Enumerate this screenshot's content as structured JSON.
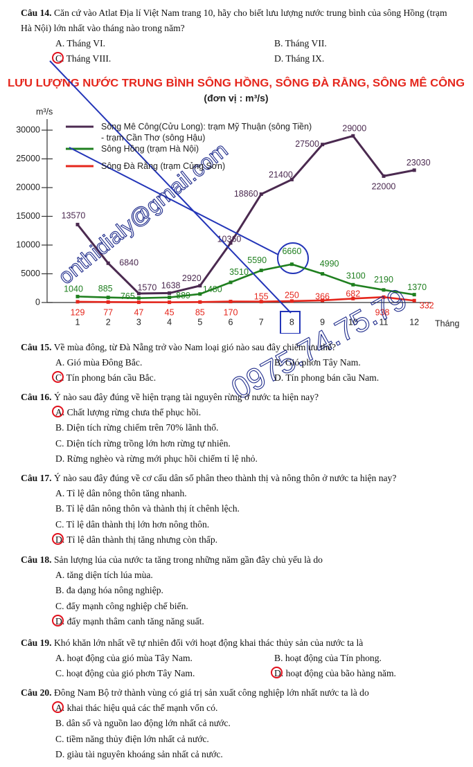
{
  "questions": [
    {
      "label": "Câu 14.",
      "text": "Căn cứ vào Atlat Địa lí Việt Nam trang 10, hãy cho biết lưu lượng nước trung bình của sông Hồng (trạm Hà Nội) lớn nhất vào tháng nào trong năm?",
      "options": [
        "A. Tháng VI.",
        "B. Tháng VII.",
        "C. Tháng VIII.",
        "D. Tháng IX."
      ]
    },
    {
      "label": "Câu 15.",
      "text": "Về mùa đông, từ Đà Nẵng trở vào Nam loại gió nào sau đây chiếm ưu thế?",
      "options": [
        "A. Gió mùa Đông Bắc.",
        "B. Gió phơn Tây Nam.",
        "C. Tín phong bán cầu Bắc.",
        "D. Tín phong bán cầu Nam."
      ]
    },
    {
      "label": "Câu 16.",
      "text": "Ý nào sau đây đúng về hiện trạng tài nguyên rừng ở nước ta hiện nay?",
      "options": [
        "A. Chất lượng rừng chưa thể phục hồi.",
        "B. Diện tích rừng chiếm trên 70% lãnh thổ.",
        "C. Diện tích rừng trồng lớn hơn rừng tự nhiên.",
        "D. Rừng nghèo và rừng mới phục hồi chiếm tỉ lệ nhỏ."
      ]
    },
    {
      "label": "Câu 17.",
      "text": "Ý nào sau đây đúng về cơ cấu dân số phân theo thành thị và nông thôn ở nước ta hiện nay?",
      "options": [
        "A. Tỉ lệ dân nông thôn tăng nhanh.",
        "B. Tỉ lệ dân nông thôn và thành thị ít chênh lệch.",
        "C. Tỉ lệ dân thành thị lớn hơn nông thôn.",
        "D. Tỉ lệ dân thành thị tăng nhưng còn thấp."
      ]
    },
    {
      "label": "Câu 18.",
      "text": "Sản lượng lúa của nước ta tăng trong những năm gần đây chủ yếu là do",
      "options": [
        "A. tăng diện tích lúa mùa.",
        "B. đa dạng hóa nông nghiệp.",
        "C. đẩy mạnh công nghiệp chế biến.",
        "D. đẩy mạnh thâm canh tăng năng suất."
      ]
    },
    {
      "label": "Câu 19.",
      "text": "Khó khăn lớn nhất về tự nhiên đối với hoạt động khai thác thủy sản của nước ta là",
      "options": [
        "A. hoạt động của gió mùa Tây Nam.",
        "B. hoạt động của Tín phong.",
        "C. hoạt động của gió phơn Tây Nam.",
        "D. hoạt động của bão hàng năm."
      ]
    },
    {
      "label": "Câu 20.",
      "text": "Đông Nam Bộ trở thành vùng có giá trị sản xuất công nghiệp lớn nhất nước ta là do",
      "options": [
        "A. khai thác hiệu quả các thế mạnh vốn có.",
        "B. dân số và nguồn lao động lớn nhất cả nước.",
        "C. tiềm năng thủy điện lớn nhất cả nước.",
        "D. giàu tài nguyên khoáng sản nhất cả nước."
      ]
    }
  ],
  "chart_data": {
    "type": "line",
    "title": "LƯU LƯỢNG NƯỚC TRUNG BÌNH SÔNG HỒNG, SÔNG ĐÀ RẰNG, SÔNG MÊ CÔNG",
    "subtitle": "(đơn vị : m³/s)",
    "y_label": "m³/s",
    "x_label": "Tháng",
    "categories": [
      "1",
      "2",
      "3",
      "4",
      "5",
      "6",
      "7",
      "8",
      "9",
      "10",
      "11",
      "12"
    ],
    "ylim": [
      0,
      30000
    ],
    "yticks": [
      0,
      5000,
      10000,
      15000,
      20000,
      25000,
      30000
    ],
    "series": [
      {
        "name": "Sông Mê Công(Cửu Long): trạm Mỹ Thuận (sông Tiền)\n- trạm Cần Thơ (sông Hậu)",
        "color": "#4b2a50",
        "values": [
          13570,
          6840,
          1570,
          1638,
          2920,
          10360,
          18860,
          21400,
          27500,
          29000,
          22000,
          23030
        ]
      },
      {
        "name": "Sông Hồng (trạm Hà Nội)",
        "color": "#1f7f1f",
        "values": [
          1040,
          885,
          765,
          889,
          1480,
          3510,
          5590,
          6660,
          4990,
          3100,
          2190,
          1370
        ]
      },
      {
        "name": "Sông Đà Rằng (trạm Củng Sơn)",
        "color": "#e5261c",
        "values": [
          129,
          77,
          47,
          45,
          85,
          170,
          155,
          250,
          366,
          682,
          938,
          332
        ]
      }
    ]
  },
  "watermarks": [
    "onthidialy@gmail.com",
    "0975.74.75.79"
  ]
}
